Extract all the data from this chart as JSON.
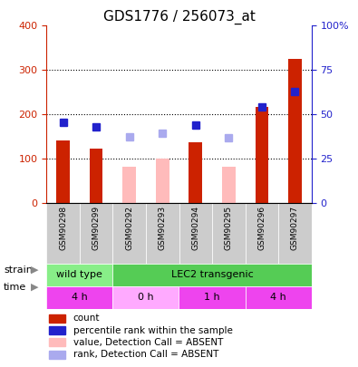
{
  "title": "GDS1776 / 256073_at",
  "samples": [
    "GSM90298",
    "GSM90299",
    "GSM90292",
    "GSM90293",
    "GSM90294",
    "GSM90295",
    "GSM90296",
    "GSM90297"
  ],
  "count_values": [
    140,
    122,
    null,
    null,
    137,
    null,
    217,
    325
  ],
  "count_absent_values": [
    null,
    null,
    82,
    100,
    null,
    82,
    null,
    null
  ],
  "rank_values": [
    182,
    172,
    null,
    null,
    175,
    null,
    217,
    252
  ],
  "rank_absent_values": [
    null,
    null,
    148,
    157,
    null,
    147,
    null,
    null
  ],
  "ylim_left": [
    0,
    400
  ],
  "ylim_right": [
    0,
    100
  ],
  "yticks_left": [
    0,
    100,
    200,
    300,
    400
  ],
  "yticks_right": [
    0,
    25,
    50,
    75,
    100
  ],
  "ytick_labels_right": [
    "0",
    "25",
    "50",
    "75",
    "100%"
  ],
  "color_count": "#cc2200",
  "color_count_absent": "#ffbbbb",
  "color_rank": "#2222cc",
  "color_rank_absent": "#aaaaee",
  "strain_labels": [
    {
      "label": "wild type",
      "start": 0,
      "end": 2,
      "color": "#88ee88"
    },
    {
      "label": "LEC2 transgenic",
      "start": 2,
      "end": 8,
      "color": "#55cc55"
    }
  ],
  "time_labels": [
    {
      "label": "4 h",
      "start": 0,
      "end": 2,
      "color": "#ee44ee"
    },
    {
      "label": "0 h",
      "start": 2,
      "end": 4,
      "color": "#ffaaff"
    },
    {
      "label": "1 h",
      "start": 4,
      "end": 6,
      "color": "#ee44ee"
    },
    {
      "label": "4 h",
      "start": 6,
      "end": 8,
      "color": "#ee44ee"
    }
  ],
  "legend_items": [
    {
      "label": "count",
      "color": "#cc2200",
      "absent": false
    },
    {
      "label": "percentile rank within the sample",
      "color": "#2222cc",
      "absent": false
    },
    {
      "label": "value, Detection Call = ABSENT",
      "color": "#ffbbbb",
      "absent": true
    },
    {
      "label": "rank, Detection Call = ABSENT",
      "color": "#aaaaee",
      "absent": true
    }
  ],
  "bar_width": 0.4,
  "background_color": "#ffffff"
}
